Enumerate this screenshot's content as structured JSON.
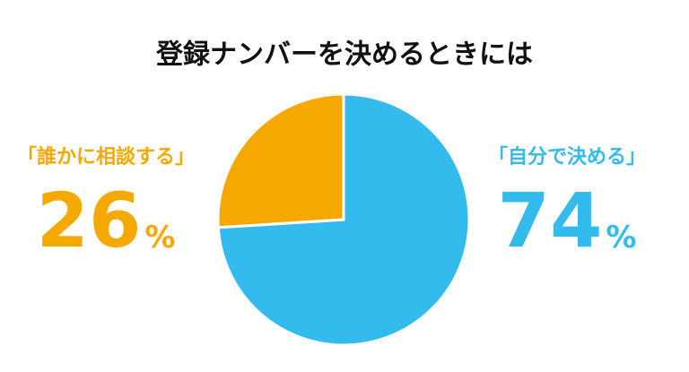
{
  "chart_data": {
    "type": "pie",
    "title": "登録ナンバーを決めるときには",
    "categories": [
      "「自分で決める」",
      "「誰かに相談する」"
    ],
    "values": [
      74,
      26
    ],
    "value_labels": [
      "74%",
      "26%"
    ],
    "colors": [
      "#33bbee",
      "#f5a800"
    ]
  }
}
